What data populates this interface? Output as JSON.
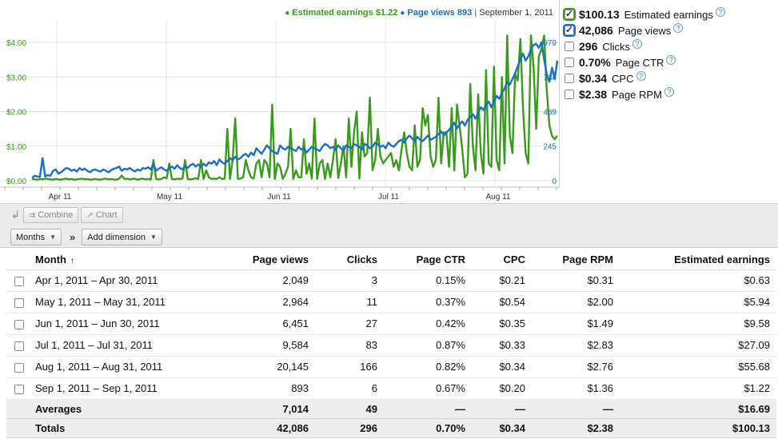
{
  "chart_legend": {
    "earnings_label": "Estimated earnings $1.22",
    "pageviews_label": "Page views 893",
    "separator": "|",
    "date": "September 1, 2011"
  },
  "chart_data": {
    "type": "line",
    "x_tick_labels": [
      "Apr 11",
      "May 11",
      "Jun 11",
      "Jul 11",
      "Aug 11"
    ],
    "y_left": {
      "ticks": [
        "$4.00",
        "$3.00",
        "$2.00",
        "$1.00",
        "$0.00"
      ],
      "values": [
        4,
        3,
        2,
        1,
        0
      ],
      "color": "#3a9a1c"
    },
    "y_right": {
      "ticks": [
        "979",
        "734",
        "489",
        "245",
        "0"
      ],
      "values": [
        979,
        734,
        489,
        245,
        0
      ],
      "color": "#1a6ec4"
    },
    "series": [
      {
        "name": "Estimated earnings",
        "axis": "left",
        "color": "#3a9a1c",
        "values": [
          0.05,
          0.04,
          0.03,
          0.05,
          0.04,
          0.06,
          0.05,
          0.04,
          0.03,
          0.05,
          0.04,
          0.03,
          0.05,
          0.06,
          0.04,
          0.05,
          0.03,
          0.04,
          0.05,
          0.06,
          0.04,
          0.05,
          0.03,
          0.04,
          0.05,
          0.04,
          0.03,
          0.05,
          0.06,
          0.04,
          0.05,
          0.04,
          0.03,
          0.06,
          0.15,
          0.05,
          0.06,
          0.04,
          0.05,
          0.06,
          0.03,
          0.05,
          0.06,
          0.04,
          0.05,
          0.03,
          0.6,
          0.05,
          0.04,
          0.05,
          0.1,
          0.07,
          0.5,
          0.05,
          0.04,
          0.06,
          0.05,
          0.06,
          0.6,
          0.05,
          0.04,
          0.05,
          0.07,
          0.05,
          0.6,
          0.05,
          0.3,
          0.1,
          0.05,
          0.06,
          0.05,
          0.1,
          0.05,
          0.06,
          1.5,
          0.05,
          0.6,
          1.8,
          0.05,
          0.06,
          0.1,
          0.6,
          0.3,
          0.1,
          0.06,
          0.5,
          0.6,
          0.1,
          0.6,
          0.5,
          0.1,
          2.2,
          0.05,
          0.5,
          0.4,
          0.05,
          0.2,
          0.4,
          1.5,
          0.05,
          0.3,
          0.1,
          0.1,
          1.2,
          0.2,
          0.5,
          0.06,
          1.8,
          0.05,
          0.5,
          0.6,
          0.05,
          0.5,
          0.1,
          0.6,
          1.2,
          0.08,
          0.5,
          1.0,
          0.1,
          1.8,
          0.4,
          1.4,
          2.0,
          0.06,
          1.4,
          0.7,
          0.8,
          2.4,
          0.3,
          0.6,
          1.5,
          0.7,
          0.5,
          0.6,
          0.7,
          0.8,
          0.4,
          0.6,
          0.3,
          0.9,
          1.4,
          0.8,
          0.4,
          0.3,
          1.6,
          0.4,
          0.6,
          2.1,
          1.6,
          1.9,
          0.7,
          0.4,
          0.6,
          2.4,
          0.5,
          1.4,
          1.4,
          0.4,
          2.1,
          0.3,
          2.2,
          1.6,
          0.9,
          0.1,
          0.2,
          2.8,
          1.0,
          0.3,
          2.5,
          0.8,
          0.2,
          3.2,
          0.5,
          0.4,
          3.3,
          0.6,
          0.3,
          3.0,
          0.5,
          4.2,
          1.3,
          0.8,
          3.1,
          2.9,
          4.1,
          2.1,
          0.8,
          0.5,
          4.2,
          3.3,
          1.5,
          3.6,
          3.8,
          4.2,
          2.6,
          1.6,
          1.3,
          1.2,
          1.3
        ]
      },
      {
        "name": "Page views",
        "axis": "right",
        "color": "#1a6ec4",
        "values": [
          20,
          35,
          30,
          28,
          160,
          30,
          40,
          35,
          70,
          80,
          50,
          60,
          75,
          90,
          85,
          70,
          80,
          65,
          90,
          75,
          85,
          70,
          60,
          75,
          80,
          70,
          65,
          80,
          70,
          60,
          75,
          85,
          90,
          100,
          70,
          85,
          80,
          90,
          75,
          65,
          80,
          70,
          90,
          85,
          95,
          80,
          120,
          70,
          85,
          95,
          80,
          70,
          90,
          100,
          85,
          110,
          90,
          80,
          100,
          90,
          110,
          120,
          100,
          115,
          95,
          120,
          105,
          130,
          120,
          140,
          110,
          150,
          130,
          120,
          140,
          160,
          145,
          170,
          150,
          160,
          180,
          190,
          170,
          200,
          180,
          230,
          210,
          190,
          220,
          250,
          230,
          210,
          200,
          190,
          250,
          230,
          220,
          240,
          230,
          220,
          210,
          240,
          220,
          230,
          200,
          220,
          240,
          230,
          220,
          210,
          240,
          260,
          250,
          230,
          240,
          220,
          250,
          230,
          210,
          250,
          240,
          230,
          260,
          250,
          240,
          220,
          260,
          250,
          230,
          240,
          270,
          260,
          240,
          250,
          230,
          270,
          250,
          240,
          260,
          280,
          290,
          270,
          300,
          320,
          300,
          280,
          310,
          290,
          280,
          300,
          320,
          290,
          300,
          310,
          330,
          350,
          320,
          340,
          360,
          380,
          410,
          370,
          400,
          420,
          390,
          430,
          450,
          470,
          440,
          480,
          520,
          500,
          540,
          560,
          520,
          560,
          600,
          580,
          620,
          650,
          700,
          680,
          720,
          760,
          810,
          860,
          900,
          850,
          880,
          930,
          960,
          970,
          940,
          980,
          860,
          750,
          700,
          800,
          720,
          850
        ]
      }
    ]
  },
  "metrics": [
    {
      "value": "$100.13",
      "label": "Estimated earnings",
      "checked": true,
      "frame": "green"
    },
    {
      "value": "42,086",
      "label": "Page views",
      "checked": true,
      "frame": "blue"
    },
    {
      "value": "296",
      "label": "Clicks",
      "checked": false
    },
    {
      "value": "0.70%",
      "label": "Page CTR",
      "checked": false
    },
    {
      "value": "$0.34",
      "label": "CPC",
      "checked": false
    },
    {
      "value": "$2.38",
      "label": "Page RPM",
      "checked": false
    }
  ],
  "help_glyph": "?",
  "toolbar": {
    "combine_label": "Combine",
    "chart_label": "Chart",
    "months_label": "Months",
    "raquo": "»",
    "add_dimension_label": "Add dimension"
  },
  "table": {
    "headers": [
      "Month",
      "Page views",
      "Clicks",
      "Page CTR",
      "CPC",
      "Page RPM",
      "Estimated earnings"
    ],
    "sort_arrow": "↑",
    "rows": [
      [
        "Apr 1, 2011 – Apr 30, 2011",
        "2,049",
        "3",
        "0.15%",
        "$0.21",
        "$0.31",
        "$0.63"
      ],
      [
        "May 1, 2011 – May 31, 2011",
        "2,964",
        "11",
        "0.37%",
        "$0.54",
        "$2.00",
        "$5.94"
      ],
      [
        "Jun 1, 2011 – Jun 30, 2011",
        "6,451",
        "27",
        "0.42%",
        "$0.35",
        "$1.49",
        "$9.58"
      ],
      [
        "Jul 1, 2011 – Jul 31, 2011",
        "9,584",
        "83",
        "0.87%",
        "$0.33",
        "$2.83",
        "$27.09"
      ],
      [
        "Aug 1, 2011 – Aug 31, 2011",
        "20,145",
        "166",
        "0.82%",
        "$0.34",
        "$2.76",
        "$55.68"
      ],
      [
        "Sep 1, 2011 – Sep 1, 2011",
        "893",
        "6",
        "0.67%",
        "$0.20",
        "$1.36",
        "$1.22"
      ]
    ],
    "averages": [
      "Averages",
      "7,014",
      "49",
      "—",
      "—",
      "—",
      "$16.69"
    ],
    "totals": [
      "Totals",
      "42,086",
      "296",
      "0.70%",
      "$0.34",
      "$2.38",
      "$100.13"
    ]
  }
}
